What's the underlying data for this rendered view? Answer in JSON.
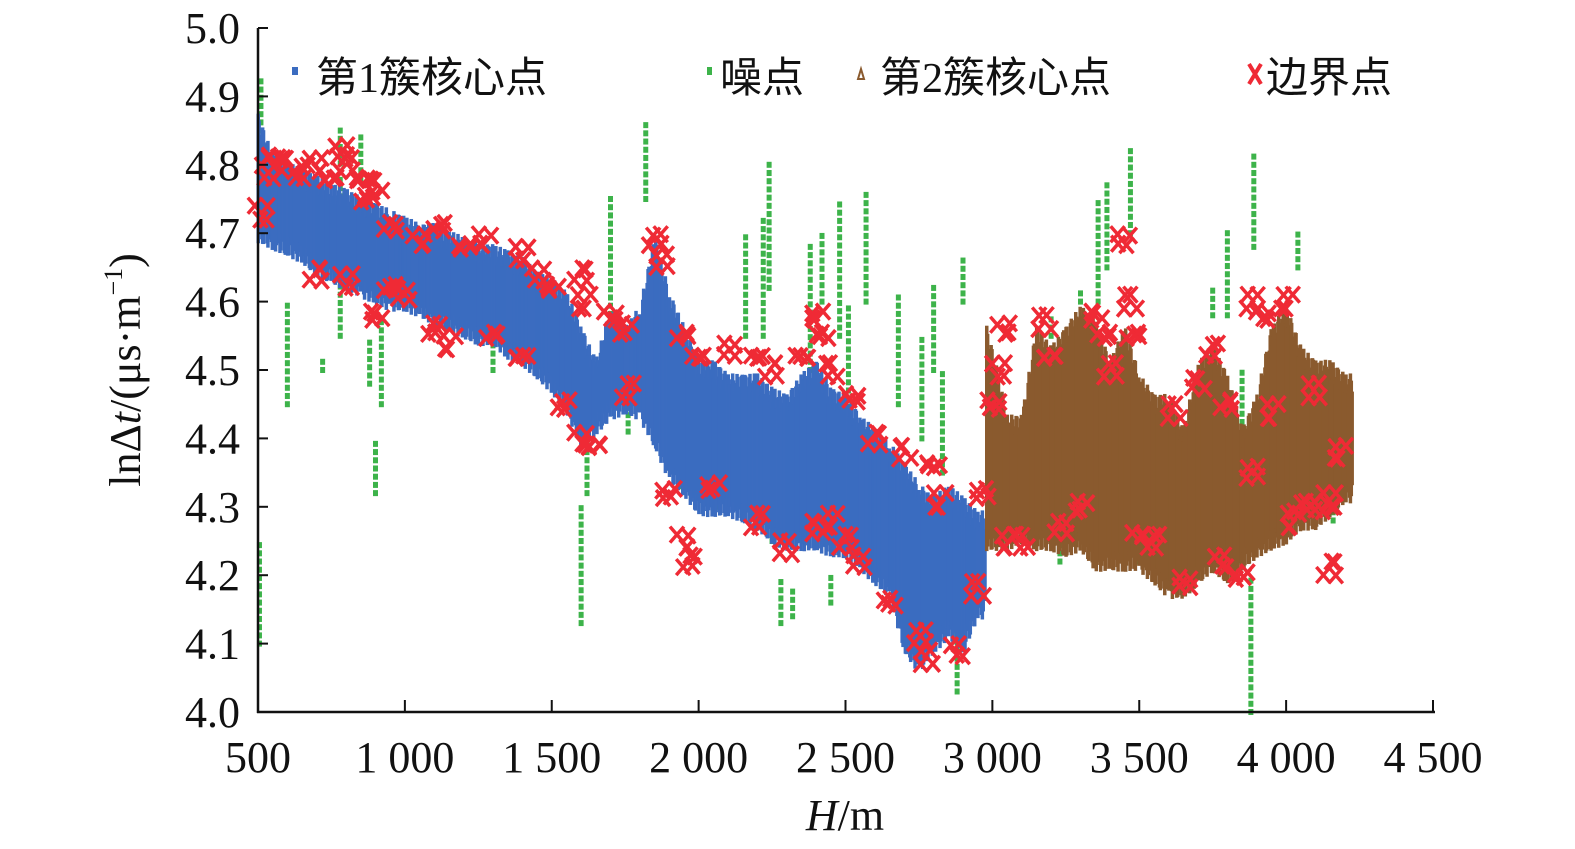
{
  "chart_data": {
    "type": "scatter",
    "title": "",
    "xlabel_italic": "H",
    "xlabel_rest": "/m",
    "ylabel_prefix": "lnΔ",
    "ylabel_italic": "t",
    "ylabel_suffix": "/(μs·m",
    "ylabel_sup": "−1",
    "ylabel_close": ")",
    "xlim": [
      500,
      4500
    ],
    "ylim": [
      4.0,
      5.0
    ],
    "xticks": [
      500,
      1000,
      1500,
      2000,
      2500,
      3000,
      3500,
      4000,
      4500
    ],
    "xtick_labels": [
      "500",
      "1 000",
      "1 500",
      "2 000",
      "2 500",
      "3 000",
      "3 500",
      "4 000",
      "4 500"
    ],
    "yticks": [
      4.0,
      4.1,
      4.2,
      4.3,
      4.4,
      4.5,
      4.6,
      4.7,
      4.8,
      4.9,
      5.0
    ],
    "ytick_labels": [
      "4.0",
      "4.1",
      "4.2",
      "4.3",
      "4.4",
      "4.5",
      "4.6",
      "4.7",
      "4.8",
      "4.9",
      "5.0"
    ],
    "legend_placement": "top",
    "series": [
      {
        "name": "第1簇核心点",
        "marker": "square",
        "color": "#3b6cc0",
        "bands": [
          [
            500,
            4.7,
            4.86
          ],
          [
            550,
            4.69,
            4.8
          ],
          [
            600,
            4.68,
            4.79
          ],
          [
            650,
            4.67,
            4.78
          ],
          [
            700,
            4.65,
            4.77
          ],
          [
            750,
            4.64,
            4.76
          ],
          [
            800,
            4.63,
            4.75
          ],
          [
            850,
            4.62,
            4.74
          ],
          [
            900,
            4.61,
            4.73
          ],
          [
            950,
            4.6,
            4.72
          ],
          [
            1000,
            4.6,
            4.71
          ],
          [
            1050,
            4.59,
            4.7
          ],
          [
            1100,
            4.58,
            4.7
          ],
          [
            1150,
            4.57,
            4.69
          ],
          [
            1200,
            4.56,
            4.68
          ],
          [
            1250,
            4.55,
            4.67
          ],
          [
            1300,
            4.55,
            4.67
          ],
          [
            1350,
            4.53,
            4.66
          ],
          [
            1400,
            4.52,
            4.65
          ],
          [
            1450,
            4.5,
            4.63
          ],
          [
            1500,
            4.48,
            4.62
          ],
          [
            1550,
            4.45,
            4.6
          ],
          [
            1600,
            4.4,
            4.55
          ],
          [
            1650,
            4.42,
            4.5
          ],
          [
            1700,
            4.44,
            4.58
          ],
          [
            1750,
            4.45,
            4.55
          ],
          [
            1800,
            4.44,
            4.58
          ],
          [
            1850,
            4.4,
            4.68
          ],
          [
            1900,
            4.35,
            4.6
          ],
          [
            1950,
            4.33,
            4.55
          ],
          [
            2000,
            4.3,
            4.5
          ],
          [
            2050,
            4.3,
            4.5
          ],
          [
            2100,
            4.3,
            4.48
          ],
          [
            2150,
            4.29,
            4.48
          ],
          [
            2200,
            4.28,
            4.48
          ],
          [
            2250,
            4.26,
            4.46
          ],
          [
            2300,
            4.25,
            4.45
          ],
          [
            2350,
            4.25,
            4.48
          ],
          [
            2400,
            4.25,
            4.5
          ],
          [
            2450,
            4.24,
            4.46
          ],
          [
            2500,
            4.24,
            4.45
          ],
          [
            2550,
            4.22,
            4.42
          ],
          [
            2600,
            4.2,
            4.4
          ],
          [
            2650,
            4.18,
            4.38
          ],
          [
            2700,
            4.1,
            4.35
          ],
          [
            2750,
            4.07,
            4.32
          ],
          [
            2800,
            4.1,
            4.3
          ],
          [
            2850,
            4.12,
            4.32
          ],
          [
            2900,
            4.1,
            4.3
          ],
          [
            2950,
            4.15,
            4.28
          ]
        ]
      },
      {
        "name": "噪点",
        "marker": "square",
        "color": "#3db34a",
        "streaks": [
          [
            510,
            4.85,
            4.93
          ],
          [
            505,
            4.1,
            4.25
          ],
          [
            600,
            4.45,
            4.6
          ],
          [
            720,
            4.5,
            4.52
          ],
          [
            780,
            4.55,
            4.86
          ],
          [
            850,
            4.78,
            4.85
          ],
          [
            880,
            4.48,
            4.55
          ],
          [
            900,
            4.32,
            4.4
          ],
          [
            920,
            4.45,
            4.58
          ],
          [
            1300,
            4.5,
            4.55
          ],
          [
            1600,
            4.13,
            4.3
          ],
          [
            1620,
            4.32,
            4.4
          ],
          [
            1700,
            4.45,
            4.75
          ],
          [
            1760,
            4.41,
            4.45
          ],
          [
            1820,
            4.75,
            4.86
          ],
          [
            1870,
            4.48,
            4.55
          ],
          [
            1940,
            4.33,
            4.4
          ],
          [
            2060,
            4.3,
            4.36
          ],
          [
            2160,
            4.55,
            4.7
          ],
          [
            2220,
            4.55,
            4.72
          ],
          [
            2240,
            4.62,
            4.81
          ],
          [
            2250,
            4.25,
            4.4
          ],
          [
            2280,
            4.13,
            4.2
          ],
          [
            2320,
            4.14,
            4.18
          ],
          [
            2380,
            4.5,
            4.68
          ],
          [
            2420,
            4.6,
            4.7
          ],
          [
            2450,
            4.16,
            4.2
          ],
          [
            2480,
            4.55,
            4.75
          ],
          [
            2510,
            4.35,
            4.6
          ],
          [
            2570,
            4.6,
            4.76
          ],
          [
            2680,
            4.45,
            4.61
          ],
          [
            2760,
            4.4,
            4.55
          ],
          [
            2800,
            4.5,
            4.62
          ],
          [
            2830,
            4.35,
            4.5
          ],
          [
            2880,
            4.03,
            4.15
          ],
          [
            2900,
            4.6,
            4.67
          ],
          [
            3200,
            4.55,
            4.58
          ],
          [
            3230,
            4.22,
            4.28
          ],
          [
            3300,
            4.6,
            4.62
          ],
          [
            3360,
            4.6,
            4.75
          ],
          [
            3390,
            4.65,
            4.78
          ],
          [
            3470,
            4.7,
            4.83
          ],
          [
            3500,
            4.22,
            4.3
          ],
          [
            3750,
            4.58,
            4.62
          ],
          [
            3800,
            4.58,
            4.7
          ],
          [
            3850,
            4.4,
            4.5
          ],
          [
            3880,
            4.0,
            4.2
          ],
          [
            3890,
            4.68,
            4.82
          ],
          [
            4040,
            4.65,
            4.7
          ],
          [
            4160,
            4.28,
            4.35
          ]
        ]
      },
      {
        "name": "第2簇核心点",
        "marker": "triangle",
        "color": "#8a5a2e",
        "bands": [
          [
            2980,
            4.25,
            4.55
          ],
          [
            3020,
            4.25,
            4.48
          ],
          [
            3050,
            4.25,
            4.42
          ],
          [
            3100,
            4.26,
            4.42
          ],
          [
            3150,
            4.25,
            4.55
          ],
          [
            3200,
            4.25,
            4.52
          ],
          [
            3250,
            4.24,
            4.55
          ],
          [
            3300,
            4.25,
            4.58
          ],
          [
            3350,
            4.22,
            4.56
          ],
          [
            3400,
            4.22,
            4.5
          ],
          [
            3450,
            4.22,
            4.55
          ],
          [
            3500,
            4.22,
            4.48
          ],
          [
            3550,
            4.2,
            4.45
          ],
          [
            3600,
            4.18,
            4.45
          ],
          [
            3650,
            4.18,
            4.4
          ],
          [
            3700,
            4.2,
            4.5
          ],
          [
            3750,
            4.22,
            4.52
          ],
          [
            3800,
            4.2,
            4.48
          ],
          [
            3850,
            4.22,
            4.4
          ],
          [
            3900,
            4.24,
            4.45
          ],
          [
            3950,
            4.25,
            4.55
          ],
          [
            4000,
            4.26,
            4.58
          ],
          [
            4050,
            4.28,
            4.52
          ],
          [
            4100,
            4.28,
            4.5
          ],
          [
            4150,
            4.3,
            4.5
          ],
          [
            4200,
            4.32,
            4.48
          ]
        ]
      },
      {
        "name": "边界点",
        "marker": "x",
        "color": "#ef2a35",
        "points": [
          [
            510,
            4.73
          ],
          [
            530,
            4.79
          ],
          [
            560,
            4.81
          ],
          [
            600,
            4.8
          ],
          [
            650,
            4.79
          ],
          [
            700,
            4.8
          ],
          [
            750,
            4.78
          ],
          [
            780,
            4.82
          ],
          [
            800,
            4.8
          ],
          [
            850,
            4.78
          ],
          [
            870,
            4.75
          ],
          [
            900,
            4.77
          ],
          [
            950,
            4.71
          ],
          [
            1050,
            4.69
          ],
          [
            1120,
            4.71
          ],
          [
            1200,
            4.68
          ],
          [
            1270,
            4.69
          ],
          [
            1400,
            4.67
          ],
          [
            1450,
            4.64
          ],
          [
            1500,
            4.62
          ],
          [
            1600,
            4.64
          ],
          [
            1610,
            4.6
          ],
          [
            1700,
            4.58
          ],
          [
            1750,
            4.56
          ],
          [
            1850,
            4.69
          ],
          [
            1880,
            4.66
          ],
          [
            1950,
            4.55
          ],
          [
            2000,
            4.52
          ],
          [
            2100,
            4.53
          ],
          [
            2200,
            4.52
          ],
          [
            2250,
            4.5
          ],
          [
            2350,
            4.52
          ],
          [
            2400,
            4.58
          ],
          [
            2420,
            4.55
          ],
          [
            2450,
            4.5
          ],
          [
            2520,
            4.46
          ],
          [
            700,
            4.64
          ],
          [
            800,
            4.63
          ],
          [
            900,
            4.58
          ],
          [
            950,
            4.62
          ],
          [
            1000,
            4.61
          ],
          [
            1100,
            4.56
          ],
          [
            1150,
            4.54
          ],
          [
            1300,
            4.55
          ],
          [
            1400,
            4.52
          ],
          [
            1540,
            4.45
          ],
          [
            1600,
            4.4
          ],
          [
            1650,
            4.39
          ],
          [
            1760,
            4.47
          ],
          [
            1900,
            4.32
          ],
          [
            1950,
            4.25
          ],
          [
            1970,
            4.22
          ],
          [
            2050,
            4.33
          ],
          [
            2200,
            4.28
          ],
          [
            2300,
            4.24
          ],
          [
            2400,
            4.27
          ],
          [
            2450,
            4.28
          ],
          [
            2500,
            4.25
          ],
          [
            2550,
            4.22
          ],
          [
            2600,
            4.4
          ],
          [
            2650,
            4.16
          ],
          [
            2700,
            4.38
          ],
          [
            2750,
            4.11
          ],
          [
            2780,
            4.08
          ],
          [
            2800,
            4.36
          ],
          [
            2820,
            4.31
          ],
          [
            2880,
            4.09
          ],
          [
            2950,
            4.18
          ],
          [
            2970,
            4.32
          ],
          [
            3000,
            4.45
          ],
          [
            3020,
            4.5
          ],
          [
            3040,
            4.56
          ],
          [
            3050,
            4.25
          ],
          [
            3100,
            4.25
          ],
          [
            3180,
            4.57
          ],
          [
            3200,
            4.52
          ],
          [
            3230,
            4.27
          ],
          [
            3300,
            4.3
          ],
          [
            3350,
            4.58
          ],
          [
            3380,
            4.55
          ],
          [
            3400,
            4.5
          ],
          [
            3450,
            4.69
          ],
          [
            3470,
            4.6
          ],
          [
            3480,
            4.55
          ],
          [
            3500,
            4.26
          ],
          [
            3550,
            4.25
          ],
          [
            3620,
            4.44
          ],
          [
            3650,
            4.19
          ],
          [
            3700,
            4.48
          ],
          [
            3750,
            4.53
          ],
          [
            3780,
            4.22
          ],
          [
            3800,
            4.45
          ],
          [
            3850,
            4.2
          ],
          [
            3880,
            4.35
          ],
          [
            3880,
            4.6
          ],
          [
            3920,
            4.58
          ],
          [
            3950,
            4.44
          ],
          [
            4000,
            4.6
          ],
          [
            4020,
            4.28
          ],
          [
            4050,
            4.3
          ],
          [
            4100,
            4.47
          ],
          [
            4120,
            4.3
          ],
          [
            4150,
            4.21
          ],
          [
            4150,
            4.31
          ],
          [
            4180,
            4.38
          ]
        ]
      }
    ]
  }
}
